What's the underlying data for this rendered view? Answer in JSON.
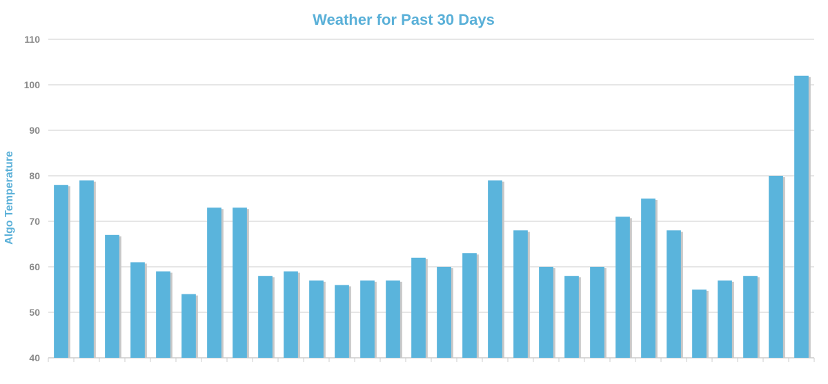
{
  "colors": {
    "accent": "#5ab0d8",
    "bar": "#5ab4dc",
    "bar_shadow": "#c8c8c8",
    "grid": "#cccccc",
    "tick_text": "#8a8a8a"
  },
  "chart_data": {
    "type": "bar",
    "title": "Weather for Past 30 Days",
    "xlabel": "",
    "ylabel": "Algo Temperature",
    "ylim": [
      40,
      110
    ],
    "yticks": [
      40,
      50,
      60,
      70,
      80,
      90,
      100,
      110
    ],
    "grid": true,
    "legend": "none",
    "values": [
      78,
      79,
      67,
      61,
      59,
      54,
      73,
      73,
      58,
      59,
      57,
      56,
      57,
      57,
      62,
      60,
      63,
      79,
      68,
      60,
      58,
      60,
      71,
      75,
      68,
      55,
      57,
      58,
      80,
      102
    ]
  }
}
